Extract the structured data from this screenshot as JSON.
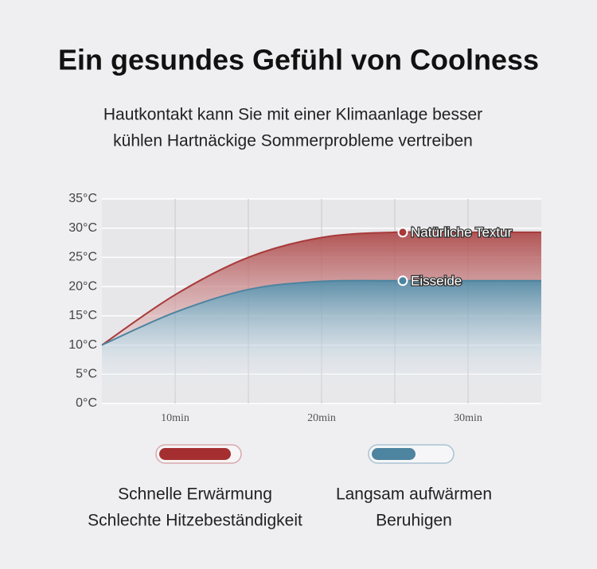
{
  "chart_data": {
    "type": "line",
    "title": "Ein gesundes Gefühl von Coolness",
    "subtitle": [
      "Hautkontakt kann Sie mit einer Klimaanlage besser",
      "kühlen Hartnäckige Sommerprobleme vertreiben"
    ],
    "x": [
      5,
      10,
      15,
      20,
      25,
      30,
      35
    ],
    "series": [
      {
        "name": "Natürliche Textur",
        "color": "#a83a3a",
        "values": [
          10,
          18.6,
          25,
          28.4,
          29.3,
          29.3,
          29.3
        ]
      },
      {
        "name": "Eisseide",
        "color": "#4d84a0",
        "values": [
          10,
          15.6,
          19.5,
          20.9,
          21,
          21,
          21
        ]
      }
    ],
    "xlim": [
      5,
      35
    ],
    "xticks": [
      {
        "value": 10,
        "label": "10min"
      },
      {
        "value": 15,
        "label": null
      },
      {
        "value": 20,
        "label": "20min"
      },
      {
        "value": 25,
        "label": null
      },
      {
        "value": 30,
        "label": "30min"
      }
    ],
    "ylim": [
      0,
      35
    ],
    "yticks": [
      {
        "value": 0,
        "label": "0°C"
      },
      {
        "value": 5,
        "label": "5°C"
      },
      {
        "value": 10,
        "label": "10°C"
      },
      {
        "value": 15,
        "label": "15°C"
      },
      {
        "value": 20,
        "label": "20°C"
      },
      {
        "value": 25,
        "label": "25°C"
      },
      {
        "value": 30,
        "label": "30°C"
      },
      {
        "value": 35,
        "label": "35°C"
      }
    ],
    "grid": true,
    "comparison": [
      {
        "lines": [
          "Schnelle Erwärmung",
          "Schlechte Hitzebeständigkeit"
        ]
      },
      {
        "lines": [
          "Langsam aufwärmen",
          "Beruhigen"
        ]
      }
    ]
  }
}
